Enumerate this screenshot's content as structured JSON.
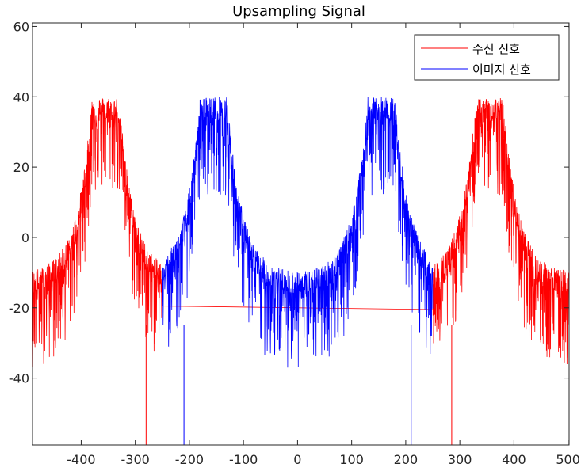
{
  "chart_data": {
    "type": "line",
    "title": "Upsampling Signal",
    "xlabel": "",
    "ylabel": "",
    "xlim": [
      -490,
      502
    ],
    "ylim": [
      -59,
      61
    ],
    "xticks": [
      -400,
      -300,
      -200,
      -100,
      0,
      100,
      200,
      300,
      400,
      500
    ],
    "yticks": [
      -40,
      -20,
      0,
      20,
      40,
      60
    ],
    "grid": false,
    "legend_position": "top-right",
    "series": [
      {
        "name": "수신 신호",
        "color": "#ff0000",
        "segments": [
          {
            "x": [
              -490,
              -250
            ],
            "envelope": "band",
            "center": -355,
            "half_width": 25,
            "peak": 40,
            "floor": -16,
            "min": -38
          },
          {
            "x": [
              -250,
              250
            ],
            "envelope": "flat",
            "level_start": -19.5,
            "level_end": -20.5
          },
          {
            "x": [
              250,
              502
            ],
            "envelope": "band",
            "center": 355,
            "half_width": 25,
            "peak": 40,
            "floor": -16,
            "min": -38
          }
        ],
        "spikes": [
          {
            "x": -280,
            "y": -59
          },
          {
            "x": 285,
            "y": -59
          }
        ]
      },
      {
        "name": "이미지 신호",
        "color": "#0000ff",
        "segments": [
          {
            "x": [
              -250,
              250
            ],
            "envelope": "double-band",
            "centers": [
              -155,
              155
            ],
            "half_width": 25,
            "peak": 40,
            "floor": -16,
            "min": -38
          }
        ],
        "spikes": [
          {
            "x": -210,
            "y": -59
          },
          {
            "x": 210,
            "y": -59
          }
        ]
      }
    ]
  }
}
